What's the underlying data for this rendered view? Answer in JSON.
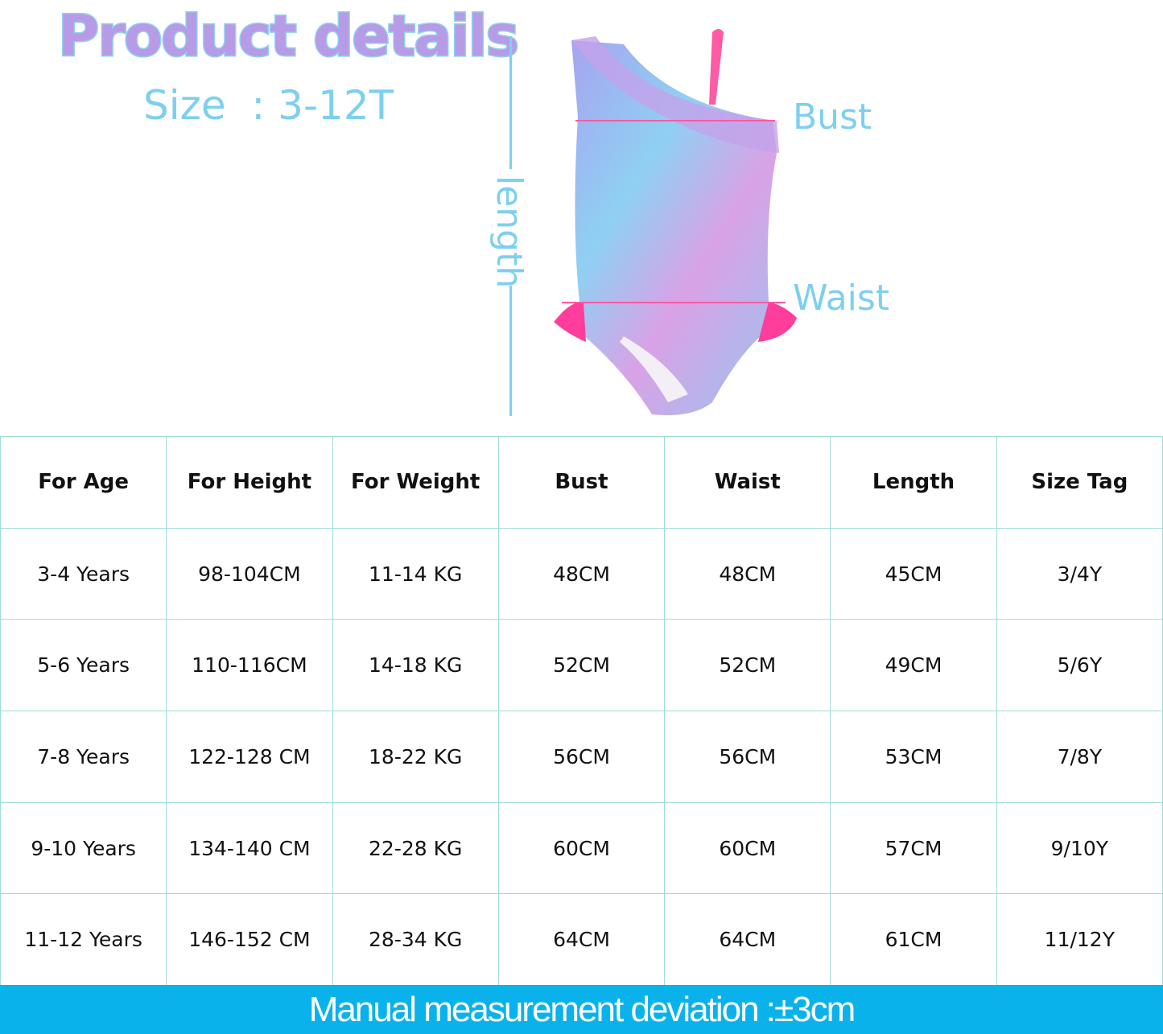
{
  "header": {
    "title": "Product details",
    "size_label": "Size  : 3-12T"
  },
  "diagram": {
    "length_label": "length",
    "bust_label": "Bust",
    "waist_label": "Waist"
  },
  "colors": {
    "title": "#b79be6",
    "accent": "#7dcff0",
    "bar": "#0ab2ec",
    "measure_line": "#ff5aa5"
  },
  "table": {
    "headers": [
      "For Age",
      "For Height",
      "For Weight",
      "Bust",
      "Waist",
      "Length",
      "Size Tag"
    ],
    "rows": [
      [
        "3-4 Years",
        "98-104CM",
        "11-14 KG",
        "48CM",
        "48CM",
        "45CM",
        "3/4Y"
      ],
      [
        "5-6 Years",
        "110-116CM",
        "14-18 KG",
        "52CM",
        "52CM",
        "49CM",
        "5/6Y"
      ],
      [
        "7-8 Years",
        "122-128 CM",
        "18-22 KG",
        "56CM",
        "56CM",
        "53CM",
        "7/8Y"
      ],
      [
        "9-10 Years",
        "134-140 CM",
        "22-28 KG",
        "60CM",
        "60CM",
        "57CM",
        "9/10Y"
      ],
      [
        "11-12 Years",
        "146-152 CM",
        "28-34 KG",
        "64CM",
        "64CM",
        "61CM",
        "11/12Y"
      ]
    ]
  },
  "footer": {
    "note": "Manual measurement deviation  :±3cm"
  }
}
